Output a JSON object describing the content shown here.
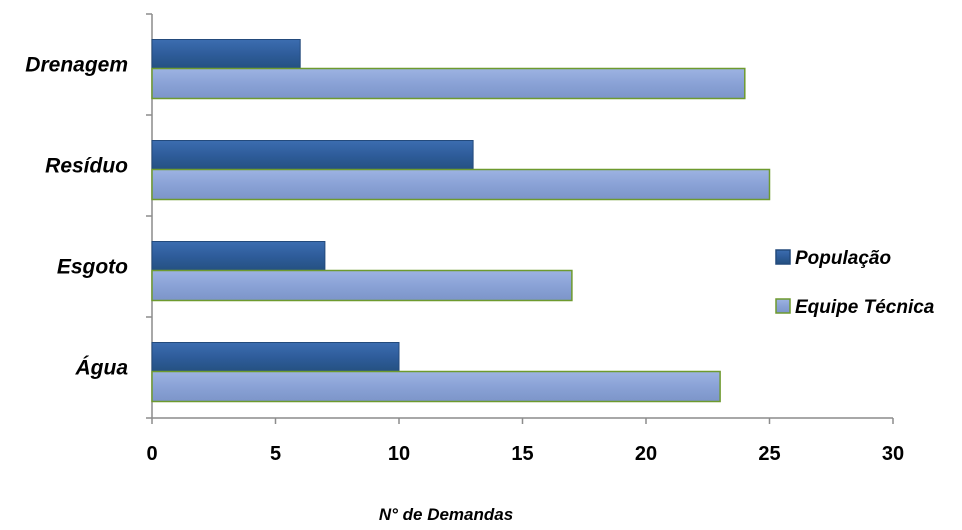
{
  "chart_data": {
    "type": "bar",
    "orientation": "horizontal",
    "categories": [
      "Água",
      "Esgoto",
      "Resíduo",
      "Drenagem"
    ],
    "series": [
      {
        "name": "População",
        "values": [
          10,
          7,
          13,
          6
        ],
        "color": "#2F5F9E"
      },
      {
        "name": "Equipe Técnica",
        "values": [
          23,
          17,
          25,
          24
        ],
        "color": "#8EA6D8",
        "border": "#6E9A2E"
      }
    ],
    "xlabel": "N° de Demandas",
    "xlim": [
      0,
      30
    ],
    "xticks": [
      "0",
      "5",
      "10",
      "15",
      "20",
      "25",
      "30"
    ],
    "grid": false,
    "legend": "right"
  }
}
